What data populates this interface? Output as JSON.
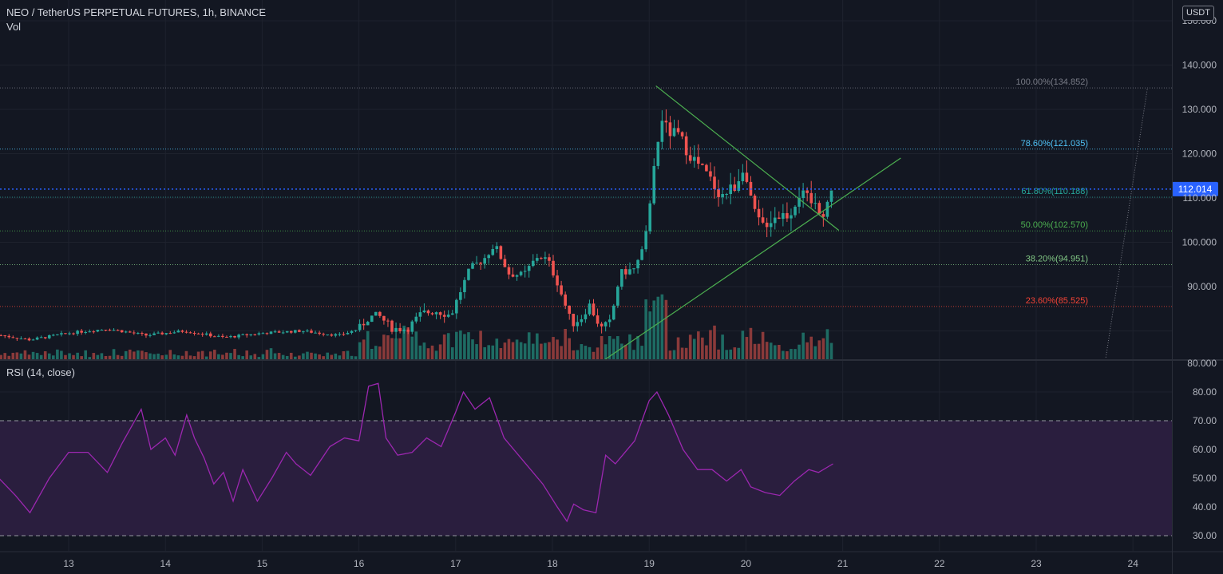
{
  "header": {
    "title": "NEO / TetherUS PERPETUAL FUTURES, 1h, BINANCE",
    "volume_label": "Vol",
    "rsi_label": "RSI (14, close)",
    "currency": "USDT"
  },
  "colors": {
    "background": "#131722",
    "grid": "#1e222d",
    "up": "#26a69a",
    "down": "#ef5350",
    "vol_up": "#1e6b63",
    "vol_down": "#8a3a3a",
    "rsi_line": "#9c27b0",
    "rsi_band": "#2a1e3e",
    "last_price": "#2962ff",
    "trend_line": "#4caf50",
    "text": "#b2b5be"
  },
  "chart_data": [
    {
      "type": "candlestick",
      "title": "NEO / TetherUS PERPETUAL FUTURES, 1h, BINANCE",
      "x_labels": [
        "13",
        "14",
        "15",
        "16",
        "17",
        "18",
        "19",
        "20",
        "21",
        "22",
        "23",
        "24"
      ],
      "y_labels": [
        "150.000",
        "140.000",
        "130.000",
        "120.000",
        "110.000",
        "100.000",
        "90.000",
        "80.000"
      ],
      "ylim": [
        73,
        150
      ],
      "last_price": {
        "value": 112.014,
        "label": "112.014"
      },
      "fib_levels": [
        {
          "label": "100.00%(134.852)",
          "value": 134.852,
          "color": "#787b86"
        },
        {
          "label": "78.60%(121.035)",
          "value": 121.035,
          "color": "#4fc3f7"
        },
        {
          "label": "61.80%(110.188)",
          "value": 110.188,
          "color": "#26a69a"
        },
        {
          "label": "50.00%(102.570)",
          "value": 102.57,
          "color": "#4caf50"
        },
        {
          "label": "38.20%(94.951)",
          "value": 94.951,
          "color": "#81c784"
        },
        {
          "label": "23.60%(85.525)",
          "value": 85.525,
          "color": "#f44336"
        }
      ],
      "trend_lines": [
        {
          "from": [
            19.07,
            135.3
          ],
          "to": [
            20.96,
            102.7
          ]
        },
        {
          "from": [
            18.54,
            73.5
          ],
          "to": [
            21.6,
            119.0
          ]
        }
      ],
      "fib_anchor_line": {
        "from": [
          23.72,
          74.0
        ],
        "to": [
          24.15,
          134.852
        ]
      },
      "ohlc_knots": [
        [
          12.3,
          79.0
        ],
        [
          12.6,
          78.0
        ],
        [
          13.0,
          79.5
        ],
        [
          13.4,
          80.5
        ],
        [
          13.8,
          79.0
        ],
        [
          14.2,
          80.0
        ],
        [
          14.6,
          78.5
        ],
        [
          15.0,
          79.5
        ],
        [
          15.4,
          80.0
        ],
        [
          15.8,
          79.0
        ],
        [
          16.0,
          80.5
        ],
        [
          16.1,
          83.0
        ],
        [
          16.2,
          83.5
        ],
        [
          16.35,
          80.5
        ],
        [
          16.5,
          80.5
        ],
        [
          16.65,
          84.0
        ],
        [
          16.8,
          84.5
        ],
        [
          16.95,
          83.5
        ],
        [
          17.05,
          89.0
        ],
        [
          17.15,
          94.0
        ],
        [
          17.3,
          96.5
        ],
        [
          17.4,
          99.5
        ],
        [
          17.55,
          93.0
        ],
        [
          17.7,
          92.5
        ],
        [
          17.85,
          97.0
        ],
        [
          17.95,
          96.0
        ],
        [
          18.05,
          91.0
        ],
        [
          18.2,
          81.5
        ],
        [
          18.3,
          83.0
        ],
        [
          18.38,
          86.0
        ],
        [
          18.5,
          80.5
        ],
        [
          18.6,
          82.0
        ],
        [
          18.7,
          93.0
        ],
        [
          18.85,
          94.0
        ],
        [
          18.95,
          99.0
        ],
        [
          19.05,
          116.0
        ],
        [
          19.12,
          128.0
        ],
        [
          19.2,
          125.0
        ],
        [
          19.3,
          124.0
        ],
        [
          19.45,
          119.0
        ],
        [
          19.6,
          115.0
        ],
        [
          19.75,
          110.5
        ],
        [
          19.9,
          113.0
        ],
        [
          19.97,
          117.5
        ],
        [
          20.05,
          109.0
        ],
        [
          20.15,
          103.5
        ],
        [
          20.3,
          106.0
        ],
        [
          20.45,
          106.5
        ],
        [
          20.55,
          111.0
        ],
        [
          20.7,
          108.5
        ],
        [
          20.8,
          107.0
        ],
        [
          20.9,
          112.0
        ]
      ],
      "volume_series": {
        "name": "Vol"
      }
    },
    {
      "type": "line",
      "title": "RSI (14, close)",
      "y_labels": [
        "80.00",
        "70.00",
        "60.00",
        "50.00",
        "40.00",
        "30.00"
      ],
      "ylim": [
        25,
        85
      ],
      "band": [
        30,
        70
      ],
      "x": [
        12.25,
        12.45,
        12.6,
        12.8,
        13.0,
        13.2,
        13.4,
        13.55,
        13.75,
        13.85,
        14.0,
        14.1,
        14.22,
        14.3,
        14.4,
        14.5,
        14.6,
        14.7,
        14.8,
        14.95,
        15.1,
        15.25,
        15.35,
        15.5,
        15.7,
        15.85,
        16.0,
        16.1,
        16.2,
        16.28,
        16.4,
        16.55,
        16.7,
        16.85,
        17.0,
        17.08,
        17.2,
        17.35,
        17.5,
        17.7,
        17.9,
        18.05,
        18.15,
        18.22,
        18.32,
        18.45,
        18.55,
        18.65,
        18.75,
        18.85,
        19.0,
        19.08,
        19.2,
        19.35,
        19.5,
        19.65,
        19.8,
        19.95,
        20.05,
        20.2,
        20.35,
        20.5,
        20.65,
        20.75,
        20.9
      ],
      "values": [
        51,
        44,
        38,
        50,
        59,
        59,
        52,
        62,
        74,
        60,
        64,
        58,
        72,
        64,
        57,
        48,
        52,
        42,
        53,
        42,
        50,
        59,
        55,
        51,
        61,
        64,
        63,
        82,
        83,
        64,
        58,
        59,
        64,
        61,
        73,
        80,
        74,
        78,
        64,
        56,
        48,
        40,
        35,
        41,
        39,
        38,
        58,
        55,
        59,
        63,
        77,
        80,
        72,
        60,
        53,
        53,
        49,
        53,
        47,
        45,
        44,
        49,
        53,
        52,
        55
      ]
    }
  ]
}
